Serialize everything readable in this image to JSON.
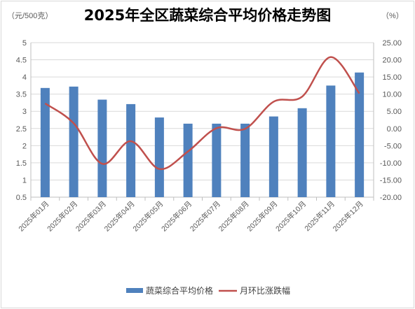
{
  "chart_data": {
    "type": "bar",
    "title": "2025年全区蔬菜综合平均价格走势图",
    "left_unit": "（元/500克）",
    "right_unit": "（%）",
    "categories": [
      "2025年01月",
      "2025年02月",
      "2025年03月",
      "2025年04月",
      "2025年05月",
      "2025年06月",
      "2025年07月",
      "2025年08月",
      "2025年09月",
      "2025年10月",
      "2025年11月",
      "2025年12月"
    ],
    "series": [
      {
        "name": "蔬菜综合平均价格",
        "type": "bar",
        "axis": "left",
        "color": "#4f81bd",
        "values": [
          3.68,
          3.72,
          3.34,
          3.21,
          2.82,
          2.64,
          2.64,
          2.64,
          2.85,
          3.09,
          3.75,
          4.13
        ]
      },
      {
        "name": "月环比涨跌幅",
        "type": "line",
        "axis": "right",
        "color": "#c0504d",
        "smooth": true,
        "values": [
          7.3,
          1.5,
          -10.3,
          -3.7,
          -11.8,
          -6.7,
          0.1,
          -0.1,
          7.8,
          9.3,
          20.8,
          10.2
        ]
      }
    ],
    "ylim_left": [
      0.5,
      5
    ],
    "yticks_left": [
      "0.5",
      "1",
      "1.5",
      "2",
      "2.5",
      "3",
      "3.5",
      "4",
      "4.5",
      "5"
    ],
    "ylim_right": [
      -20,
      25
    ],
    "yticks_right": [
      "-20.00",
      "-15.00",
      "-10.00",
      "-5.00",
      "0.00",
      "5.00",
      "10.00",
      "15.00",
      "20.00",
      "25.00"
    ],
    "grid": true,
    "legend_position": "bottom"
  }
}
